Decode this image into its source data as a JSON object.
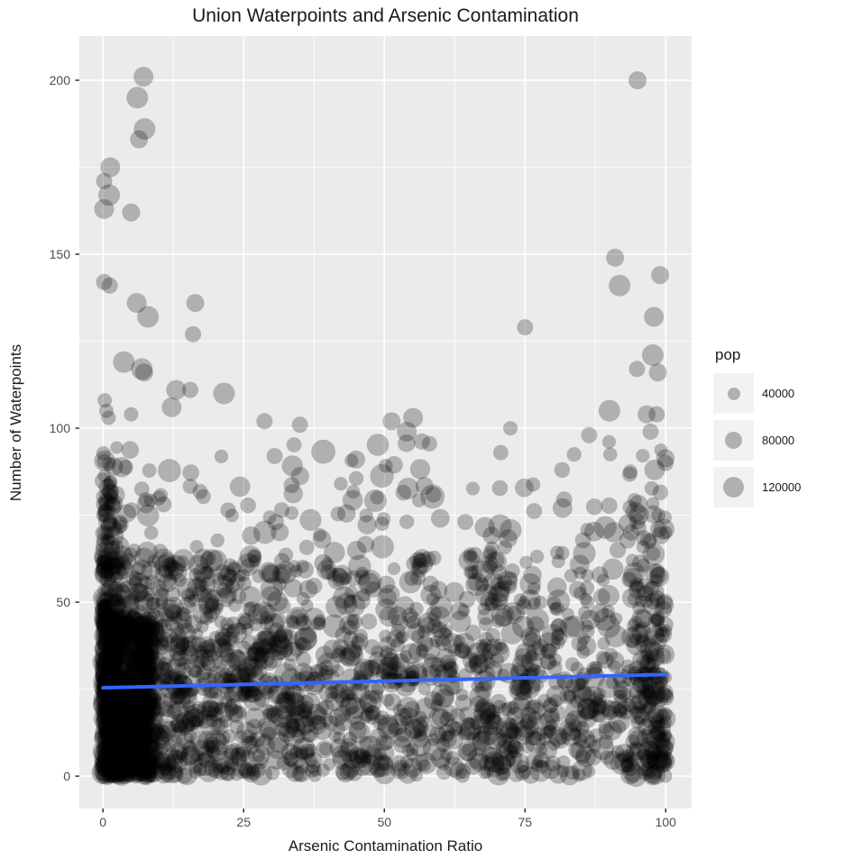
{
  "page": {
    "background": "#FFFFFF"
  },
  "chart_data": {
    "type": "scatter",
    "title": "Union Waterpoints and Arsenic Contamination",
    "xlabel": "Arsenic Contamination Ratio",
    "ylabel": "Number of Waterpoints",
    "x_ticks": {
      "values": [
        0,
        25,
        50,
        75,
        100
      ],
      "labels": [
        "0",
        "25",
        "50",
        "75",
        "100"
      ]
    },
    "y_ticks": {
      "values": [
        0,
        50,
        100,
        150,
        200
      ],
      "labels": [
        "0",
        "50",
        "100",
        "150",
        "200"
      ]
    },
    "xlim": [
      -4.2,
      104.6
    ],
    "ylim": [
      -9.3,
      212.7
    ],
    "grid": {
      "major": true,
      "minor": true
    },
    "legend_position": "right",
    "panel_background": "#EBEBEB",
    "grid_color": "#FFFFFF",
    "tick_color": "#333333",
    "tick_label_color": "#4D4D4D",
    "point_color": "#000000",
    "point_opacity": 0.25,
    "trend_line": {
      "type": "smooth",
      "color": "#3366FF",
      "width": 4,
      "points": [
        [
          0,
          25.4
        ],
        [
          100,
          29.2
        ]
      ]
    },
    "legend": {
      "title": "pop",
      "key_background": "#F2F2F2",
      "entries": [
        {
          "label": "40000",
          "radius": 7
        },
        {
          "label": "80000",
          "radius": 9.5
        },
        {
          "label": "120000",
          "radius": 11.5
        }
      ]
    },
    "outlier_points": [
      [
        7.2,
        201,
        11
      ],
      [
        6.1,
        195,
        12
      ],
      [
        7.4,
        186,
        12
      ],
      [
        6.4,
        183,
        10
      ],
      [
        1.3,
        175,
        11
      ],
      [
        0.2,
        171,
        9
      ],
      [
        1.1,
        167,
        12
      ],
      [
        0.2,
        163,
        11
      ],
      [
        5,
        162,
        10
      ],
      [
        0.2,
        142,
        9
      ],
      [
        1.2,
        141,
        9
      ],
      [
        6,
        136,
        11
      ],
      [
        16.4,
        136,
        10
      ],
      [
        8,
        132,
        12
      ],
      [
        16,
        127,
        9
      ],
      [
        3.7,
        119,
        12
      ],
      [
        6.9,
        117,
        12
      ],
      [
        7.3,
        116,
        10
      ],
      [
        13,
        111,
        11
      ],
      [
        15.5,
        111,
        9
      ],
      [
        21.5,
        110,
        12
      ],
      [
        12.2,
        106,
        11
      ],
      [
        0.3,
        108,
        8
      ],
      [
        0.6,
        105,
        8
      ],
      [
        1,
        103,
        8
      ],
      [
        5,
        104,
        8
      ],
      [
        28.7,
        102,
        9
      ],
      [
        95,
        200,
        10
      ],
      [
        91,
        149,
        10
      ],
      [
        99,
        144,
        10
      ],
      [
        91.8,
        141,
        12
      ],
      [
        97.9,
        132,
        11
      ],
      [
        75,
        129,
        9
      ],
      [
        97.7,
        121,
        12
      ],
      [
        94.9,
        117,
        9
      ],
      [
        98.6,
        116,
        10
      ],
      [
        90,
        105,
        12
      ],
      [
        96.6,
        104,
        10
      ],
      [
        98.4,
        104,
        9
      ],
      [
        97.3,
        99,
        9
      ],
      [
        51.3,
        102,
        10
      ],
      [
        55.1,
        103,
        11
      ],
      [
        54,
        99,
        11
      ],
      [
        72.4,
        100,
        8
      ],
      [
        86.4,
        98,
        9
      ],
      [
        35,
        101,
        9
      ],
      [
        30.5,
        92,
        9
      ],
      [
        45,
        91,
        10
      ]
    ],
    "cloud_bands": [
      {
        "name": "upper-sparse",
        "count": 150,
        "x": [
          0,
          100,
          1.25
        ],
        "y": [
          62,
          97,
          1.5
        ],
        "r": [
          7.5,
          13.5
        ],
        "seed": 11
      },
      {
        "name": "left-column-upper",
        "count": 85,
        "x": [
          0,
          3,
          1.8
        ],
        "y": [
          45,
          95,
          1.0
        ],
        "r": [
          7,
          12
        ],
        "seed": 22
      },
      {
        "name": "mid-band",
        "count": 330,
        "x": [
          0,
          100,
          1.15
        ],
        "y": [
          40,
          62,
          1.25
        ],
        "r": [
          7,
          13
        ],
        "seed": 33
      },
      {
        "name": "low-band",
        "count": 480,
        "x": [
          0,
          100,
          1.05
        ],
        "y": [
          20,
          40,
          1.0
        ],
        "r": [
          7,
          13
        ],
        "seed": 44
      },
      {
        "name": "bottom-band",
        "count": 560,
        "x": [
          0,
          100,
          1.0
        ],
        "y": [
          0,
          20,
          1.0
        ],
        "r": [
          7,
          13
        ],
        "seed": 55
      },
      {
        "name": "left-dense",
        "count": 350,
        "x": [
          0,
          30,
          1.8
        ],
        "y": [
          0,
          62,
          1.15
        ],
        "r": [
          7,
          12
        ],
        "seed": 66
      },
      {
        "name": "blob-core",
        "count": 550,
        "x": [
          0,
          9,
          1.3
        ],
        "y": [
          0,
          46,
          1.1
        ],
        "r": [
          8,
          13
        ],
        "seed": 77
      },
      {
        "name": "right-column",
        "count": 130,
        "x": [
          93,
          100,
          -1.7
        ],
        "y": [
          0,
          95,
          1.45
        ],
        "r": [
          7,
          12
        ],
        "seed": 88
      }
    ],
    "approximation_note": "outlier_points are values read directly off the plot; cloud_bands reproduce the ~3000-point unresolvable dense cloud"
  }
}
